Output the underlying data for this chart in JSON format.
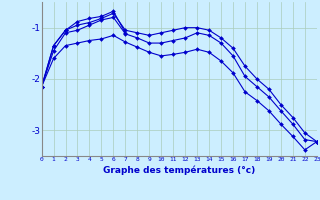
{
  "xlabel": "Graphe des températures (°c)",
  "background_color": "#cceeff",
  "grid_color": "#aaddcc",
  "line_color": "#0000cc",
  "x_ticks": [
    0,
    1,
    2,
    3,
    4,
    5,
    6,
    7,
    8,
    9,
    10,
    11,
    12,
    13,
    14,
    15,
    16,
    17,
    18,
    19,
    20,
    21,
    22,
    23
  ],
  "ylim": [
    -3.5,
    -0.5
  ],
  "xlim": [
    0,
    23
  ],
  "y_ticks": [
    -3,
    -2,
    -1
  ],
  "series": [
    {
      "x": [
        0,
        1,
        2,
        3,
        4,
        5,
        6,
        7,
        8,
        9,
        10,
        11,
        12,
        13,
        14,
        15,
        16,
        17,
        18,
        19,
        20,
        21,
        22,
        23
      ],
      "y": [
        -2.15,
        -1.35,
        -1.05,
        -0.95,
        -0.9,
        -0.82,
        -0.72,
        -1.05,
        -1.1,
        -1.15,
        -1.1,
        -1.05,
        -1.0,
        -1.0,
        -1.05,
        -1.2,
        -1.4,
        -1.75,
        -2.0,
        -2.2,
        -2.5,
        -2.75,
        -3.05,
        -3.22
      ]
    },
    {
      "x": [
        0,
        1,
        2,
        3,
        4,
        5,
        6,
        7,
        8,
        9,
        10,
        11,
        12,
        13,
        14,
        15,
        16,
        17,
        18,
        19,
        20,
        21,
        22,
        23
      ],
      "y": [
        -2.15,
        -1.45,
        -1.1,
        -1.05,
        -0.95,
        -0.85,
        -0.8,
        -1.12,
        -1.2,
        -1.3,
        -1.3,
        -1.25,
        -1.2,
        -1.1,
        -1.15,
        -1.3,
        -1.55,
        -1.95,
        -2.15,
        -2.35,
        -2.62,
        -2.88,
        -3.18,
        -3.22
      ]
    },
    {
      "x": [
        0,
        1,
        2,
        3,
        4,
        5,
        6,
        7
      ],
      "y": [
        -2.15,
        -1.35,
        -1.05,
        -0.88,
        -0.82,
        -0.78,
        -0.68,
        -1.1
      ]
    },
    {
      "x": [
        0,
        1,
        2,
        3,
        4,
        5,
        6,
        7,
        8,
        9,
        10,
        11,
        12,
        13,
        14,
        15,
        16,
        17,
        18,
        19,
        20,
        21,
        22,
        23
      ],
      "y": [
        -2.15,
        -1.6,
        -1.35,
        -1.3,
        -1.25,
        -1.22,
        -1.15,
        -1.28,
        -1.38,
        -1.48,
        -1.55,
        -1.52,
        -1.48,
        -1.42,
        -1.48,
        -1.65,
        -1.88,
        -2.25,
        -2.42,
        -2.62,
        -2.88,
        -3.12,
        -3.38,
        -3.22
      ]
    }
  ]
}
